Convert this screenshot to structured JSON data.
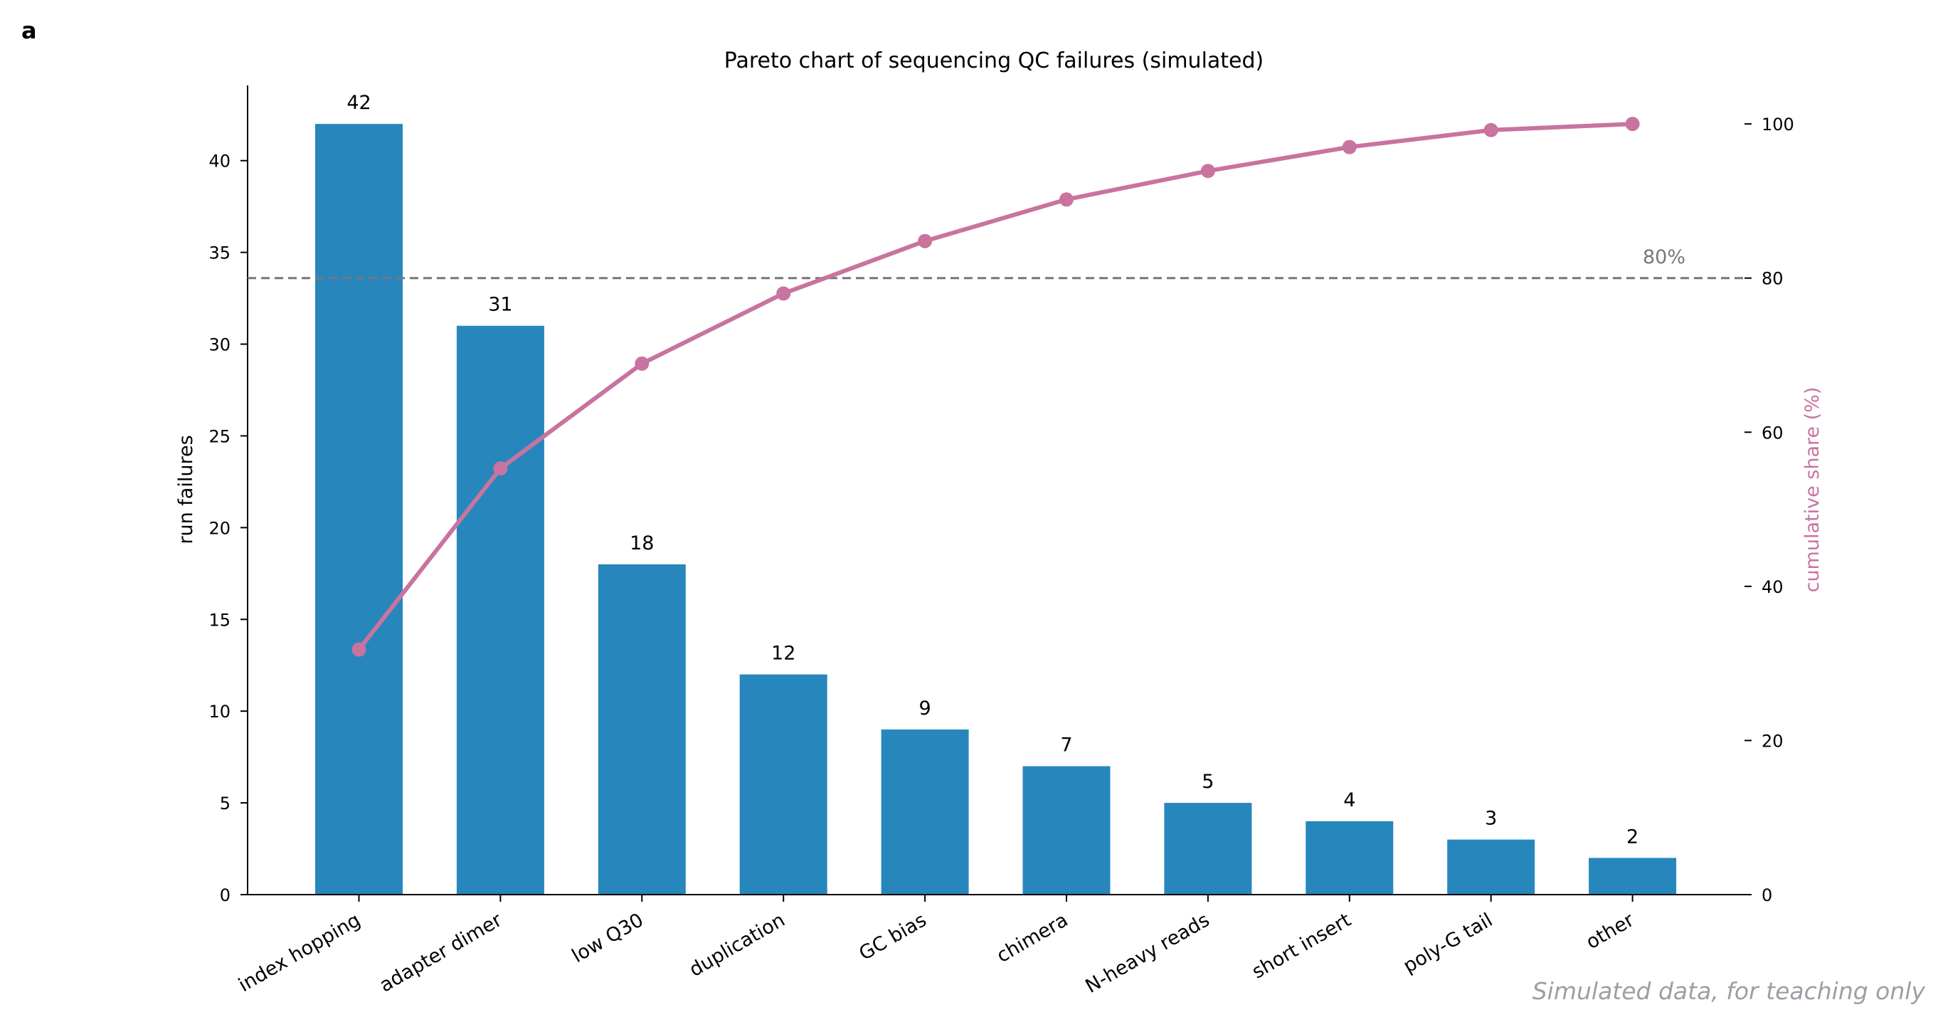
{
  "panel_label": "a",
  "footer_note": "Simulated data, for teaching only",
  "chart_data": {
    "type": "bar",
    "title": "Pareto chart of sequencing QC failures (simulated)",
    "categories": [
      "index hopping",
      "adapter dimer",
      "low Q30",
      "duplication",
      "GC bias",
      "chimera",
      "N-heavy reads",
      "short insert",
      "poly-G tail",
      "other"
    ],
    "values": [
      42,
      31,
      18,
      12,
      9,
      7,
      5,
      4,
      3,
      2
    ],
    "value_labels": [
      "42",
      "31",
      "18",
      "12",
      "9",
      "7",
      "5",
      "4",
      "3",
      "2"
    ],
    "ylabel": "run failures",
    "ylim": [
      0,
      44.1
    ],
    "yticks": [
      0,
      5,
      10,
      15,
      20,
      25,
      30,
      35,
      40
    ],
    "bar_color": "#2787bd",
    "cumulative": {
      "type": "line",
      "values": [
        31.8,
        55.3,
        68.9,
        78.0,
        84.8,
        90.2,
        93.9,
        97.0,
        99.2,
        100.0
      ],
      "ylabel": "cumulative share (%)",
      "ylim": [
        0,
        105
      ],
      "yticks": [
        0,
        20,
        40,
        60,
        80,
        100
      ],
      "color": "#c9739f"
    },
    "threshold": {
      "value": 80,
      "label": "80%",
      "color": "#777777"
    },
    "grid": false,
    "legend": "none"
  }
}
